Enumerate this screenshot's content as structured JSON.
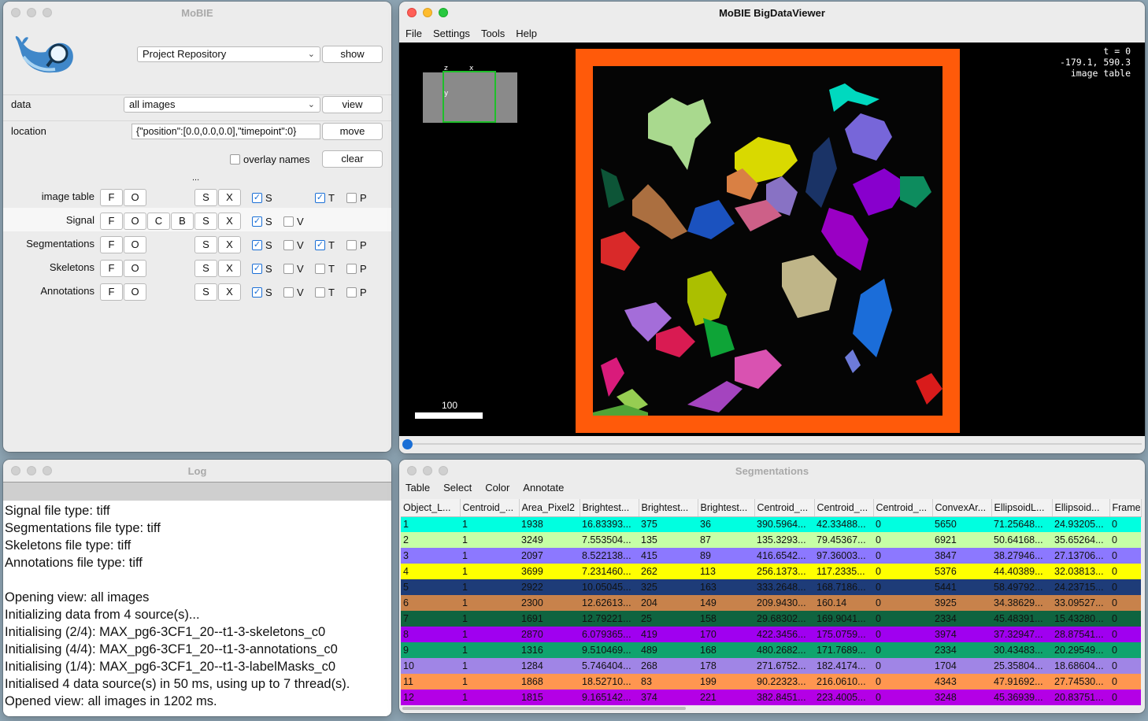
{
  "mobie": {
    "title": "MoBIE",
    "project": {
      "combo": "Project Repository",
      "button": "show"
    },
    "data": {
      "label": "data",
      "combo": "all images",
      "button": "view"
    },
    "location": {
      "label": "location",
      "value": "{\"position\":[0.0,0.0,0.0],\"timepoint\":0}",
      "button": "move"
    },
    "overlay": {
      "label": "overlay names",
      "checked": false,
      "button": "clear"
    },
    "ellipsis": "...",
    "rows": [
      {
        "label": "image table",
        "buttons": [
          "F",
          "O"
        ],
        "sx": [
          "S",
          "X"
        ],
        "checks": [
          {
            "l": "S",
            "on": true
          },
          {
            "l": "T",
            "on": true
          },
          {
            "l": "P",
            "on": false
          }
        ]
      },
      {
        "label": "Signal",
        "buttons": [
          "F",
          "O",
          "C",
          "B"
        ],
        "sx": [
          "S",
          "X"
        ],
        "checks": [
          {
            "l": "S",
            "on": true
          },
          {
            "l": "V",
            "on": false
          }
        ]
      },
      {
        "label": "Segmentations",
        "buttons": [
          "F",
          "O"
        ],
        "sx": [
          "S",
          "X"
        ],
        "checks": [
          {
            "l": "S",
            "on": true
          },
          {
            "l": "V",
            "on": false
          },
          {
            "l": "T",
            "on": true
          },
          {
            "l": "P",
            "on": false
          }
        ]
      },
      {
        "label": "Skeletons",
        "buttons": [
          "F",
          "O"
        ],
        "sx": [
          "S",
          "X"
        ],
        "checks": [
          {
            "l": "S",
            "on": true
          },
          {
            "l": "V",
            "on": false
          },
          {
            "l": "T",
            "on": false
          },
          {
            "l": "P",
            "on": false
          }
        ]
      },
      {
        "label": "Annotations",
        "buttons": [
          "F",
          "O"
        ],
        "sx": [
          "S",
          "X"
        ],
        "checks": [
          {
            "l": "S",
            "on": true
          },
          {
            "l": "V",
            "on": false
          },
          {
            "l": "T",
            "on": false
          },
          {
            "l": "P",
            "on": false
          }
        ]
      }
    ]
  },
  "log": {
    "title": "Log",
    "lines": [
      "Signal file type: tiff",
      "Segmentations file type: tiff",
      "Skeletons file type: tiff",
      "Annotations file type: tiff",
      "",
      "Opening view: all images",
      "Initializing data from 4 source(s)...",
      "Initialising (2/4): MAX_pg6-3CF1_20--t1-3-skeletons_c0",
      "Initialising (4/4): MAX_pg6-3CF1_20--t1-3-annotations_c0",
      "Initialising (1/4): MAX_pg6-3CF1_20--t1-3-labelMasks_c0",
      "Initialised 4 data source(s) in 50 ms, using up to 7 thread(s).",
      "Opened view: all images in 1202 ms."
    ]
  },
  "bdv": {
    "title": "MoBIE BigDataViewer",
    "menu": [
      "File",
      "Settings",
      "Tools",
      "Help"
    ],
    "info": [
      "t = 0",
      "-179.1,  590.3",
      "image table"
    ],
    "axes": {
      "z": "z",
      "x": "x",
      "y": "y"
    },
    "scale_label": "100",
    "frame_color": "#ff5a0a",
    "timepoint_slider": 0
  },
  "seg": {
    "title": "Segmentations",
    "menu": [
      "Table",
      "Select",
      "Color",
      "Annotate"
    ],
    "columns": [
      "Object_L...",
      "Centroid_...",
      "Area_Pixel2",
      "Brightest...",
      "Brightest...",
      "Brightest...",
      "Centroid_...",
      "Centroid_...",
      "Centroid_...",
      "ConvexAr...",
      "EllipsoidL...",
      "Ellipsoid...",
      "Frame"
    ],
    "rows": [
      {
        "color": "#00ffe0",
        "cells": [
          "1",
          "1",
          "1938",
          "16.83393...",
          "375",
          "36",
          "390.5964...",
          "42.33488...",
          "0",
          "5650",
          "71.25648...",
          "24.93205...",
          "0"
        ]
      },
      {
        "color": "#c6ffa6",
        "cells": [
          "2",
          "1",
          "3249",
          "7.553504...",
          "135",
          "87",
          "135.3293...",
          "79.45367...",
          "0",
          "6921",
          "50.64168...",
          "35.65264...",
          "0"
        ]
      },
      {
        "color": "#8c78ff",
        "cells": [
          "3",
          "1",
          "2097",
          "8.522138...",
          "415",
          "89",
          "416.6542...",
          "97.36003...",
          "0",
          "3847",
          "38.27946...",
          "27.13706...",
          "0"
        ]
      },
      {
        "color": "#ffff00",
        "cells": [
          "4",
          "1",
          "3699",
          "7.231460...",
          "262",
          "113",
          "256.1373...",
          "117.2335...",
          "0",
          "5376",
          "44.40389...",
          "32.03813...",
          "0"
        ]
      },
      {
        "color": "#1e3c78",
        "cells": [
          "5",
          "1",
          "2922",
          "10.05045...",
          "325",
          "163",
          "333.2648...",
          "168.7186...",
          "0",
          "5441",
          "58.49792...",
          "24.23715...",
          "0"
        ]
      },
      {
        "color": "#c8824b",
        "cells": [
          "6",
          "1",
          "2300",
          "12.62613...",
          "204",
          "149",
          "209.9430...",
          "160.14",
          "0",
          "3925",
          "34.38629...",
          "33.09527...",
          "0"
        ]
      },
      {
        "color": "#0f6440",
        "cells": [
          "7",
          "1",
          "1691",
          "12.79221...",
          "25",
          "158",
          "29.68302...",
          "169.9041...",
          "0",
          "2334",
          "45.48391...",
          "15.43280...",
          "0"
        ]
      },
      {
        "color": "#a000f0",
        "cells": [
          "8",
          "1",
          "2870",
          "6.079365...",
          "419",
          "170",
          "422.3456...",
          "175.0759...",
          "0",
          "3974",
          "37.32947...",
          "28.87541...",
          "0"
        ]
      },
      {
        "color": "#0fa46e",
        "cells": [
          "9",
          "1",
          "1316",
          "9.510469...",
          "489",
          "168",
          "480.2682...",
          "171.7689...",
          "0",
          "2334",
          "30.43483...",
          "20.29549...",
          "0"
        ]
      },
      {
        "color": "#a085e6",
        "cells": [
          "10",
          "1",
          "1284",
          "5.746404...",
          "268",
          "178",
          "271.6752...",
          "182.4174...",
          "0",
          "1704",
          "25.35804...",
          "18.68604...",
          "0"
        ]
      },
      {
        "color": "#ff9650",
        "cells": [
          "11",
          "1",
          "1868",
          "18.52710...",
          "83",
          "199",
          "90.22323...",
          "216.0610...",
          "0",
          "4343",
          "47.91692...",
          "27.74530...",
          "0"
        ]
      },
      {
        "color": "#b400e6",
        "cells": [
          "12",
          "1",
          "1815",
          "9.165142...",
          "374",
          "221",
          "382.8451...",
          "223.4005...",
          "0",
          "3248",
          "45.36939...",
          "20.83751...",
          "0"
        ]
      }
    ]
  }
}
